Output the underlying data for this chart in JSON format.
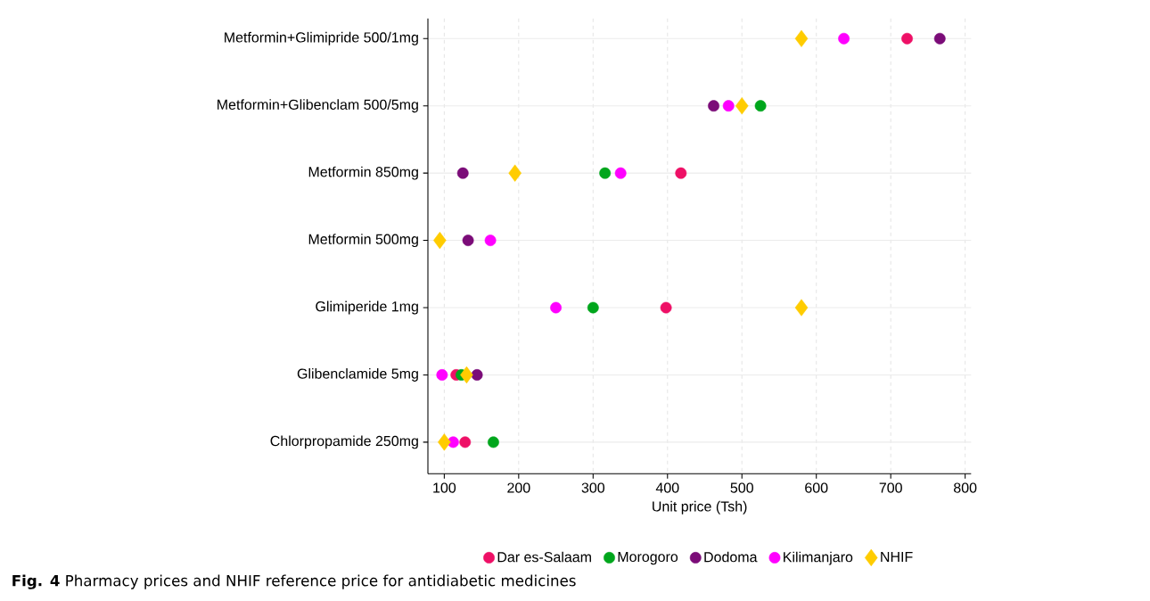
{
  "chart_data": {
    "type": "scatter",
    "orientation": "horizontal",
    "title": "**Fig. 4** Pharmacy prices and NHIF reference price for antidiabetic medicines",
    "xlabel": "Unit price (Tsh)",
    "categories": [
      "Metformin+Glimipride 500/1mg",
      "Metformin+Glibenclam 500/5mg",
      "Metformin 850mg",
      "Metformin 500mg",
      "Glimiperide 1mg",
      "Glibenclamide 5mg",
      "Chlorpropamide 250mg"
    ],
    "series": [
      {
        "name": "Dar es-Salaam",
        "color": "#ee1066",
        "marker": "circle",
        "values": [
          722,
          null,
          418,
          null,
          398,
          116,
          128
        ]
      },
      {
        "name": "Morogoro",
        "color": "#00a61c",
        "marker": "circle",
        "values": [
          null,
          525,
          316,
          null,
          300,
          123,
          166
        ]
      },
      {
        "name": "Dodoma",
        "color": "#7b0c78",
        "marker": "circle",
        "values": [
          766,
          462,
          125,
          132,
          null,
          144,
          null
        ]
      },
      {
        "name": "Kilimanjaro",
        "color": "#ff00ff",
        "marker": "circle",
        "values": [
          637,
          482,
          337,
          162,
          250,
          97,
          112
        ]
      },
      {
        "name": "NHIF",
        "color": "#ffcc00",
        "marker": "diamond",
        "values": [
          580,
          500,
          195,
          94,
          580,
          130,
          100
        ]
      }
    ],
    "xlim": [
      78,
      808
    ],
    "xticks": [
      100,
      200,
      300,
      400,
      500,
      600,
      700,
      800
    ],
    "grid": true,
    "legend": "bottom"
  }
}
